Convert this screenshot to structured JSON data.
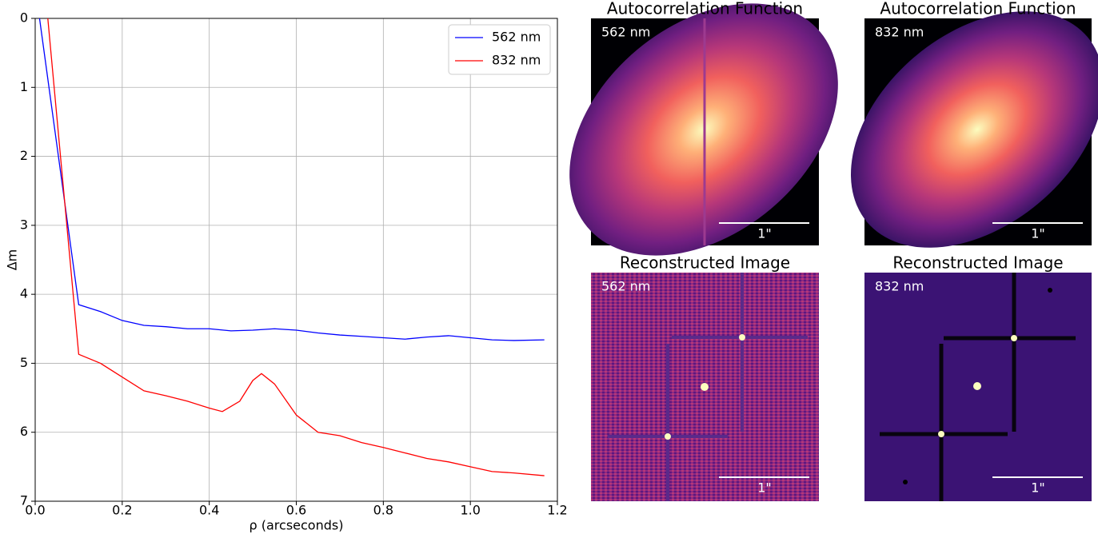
{
  "chart_data": {
    "type": "line",
    "xlabel": "ρ (arcseconds)",
    "ylabel": "Δm",
    "xlim": [
      0,
      1.2
    ],
    "ylim": [
      7,
      0
    ],
    "inverted_y": true,
    "grid": true,
    "legend": "upper right",
    "xticks": [
      {
        "value": 0,
        "label": "0.0"
      },
      {
        "value": 0.2,
        "label": "0.2"
      },
      {
        "value": 0.4,
        "label": "0.4"
      },
      {
        "value": 0.6,
        "label": "0.6"
      },
      {
        "value": 0.8,
        "label": "0.8"
      },
      {
        "value": 1.0,
        "label": "1.0"
      },
      {
        "value": 1.2,
        "label": "1.2"
      }
    ],
    "yticks": [
      0,
      1,
      2,
      3,
      4,
      5,
      6,
      7
    ],
    "series": [
      {
        "name": "562 nm",
        "color": "#0000ff",
        "x": [
          0.01,
          0.1,
          0.15,
          0.2,
          0.25,
          0.3,
          0.35,
          0.4,
          0.45,
          0.5,
          0.55,
          0.6,
          0.65,
          0.7,
          0.75,
          0.8,
          0.85,
          0.9,
          0.95,
          1.0,
          1.05,
          1.1,
          1.17
        ],
        "values": [
          0,
          4.15,
          4.25,
          4.38,
          4.45,
          4.47,
          4.5,
          4.5,
          4.53,
          4.52,
          4.5,
          4.52,
          4.56,
          4.59,
          4.61,
          4.63,
          4.65,
          4.62,
          4.6,
          4.63,
          4.66,
          4.67,
          4.66
        ]
      },
      {
        "name": "832 nm",
        "color": "#ff0000",
        "x": [
          0.029,
          0.1,
          0.15,
          0.2,
          0.25,
          0.3,
          0.35,
          0.4,
          0.43,
          0.47,
          0.5,
          0.52,
          0.55,
          0.6,
          0.65,
          0.7,
          0.75,
          0.8,
          0.85,
          0.9,
          0.95,
          1.0,
          1.05,
          1.1,
          1.17
        ],
        "values": [
          0,
          4.87,
          5.0,
          5.2,
          5.4,
          5.47,
          5.55,
          5.65,
          5.7,
          5.55,
          5.25,
          5.15,
          5.3,
          5.75,
          6.0,
          6.05,
          6.15,
          6.22,
          6.3,
          6.38,
          6.43,
          6.5,
          6.57,
          6.59,
          6.63
        ]
      }
    ]
  },
  "panels": [
    {
      "title": "Autocorrelation Function",
      "label": "562 nm",
      "scale_label": "1\""
    },
    {
      "title": "Autocorrelation Function",
      "label": "832 nm",
      "scale_label": "1\""
    },
    {
      "title": "Reconstructed Image",
      "label": "562 nm",
      "scale_label": "1\""
    },
    {
      "title": "Reconstructed Image",
      "label": "832 nm",
      "scale_label": "1\""
    }
  ]
}
